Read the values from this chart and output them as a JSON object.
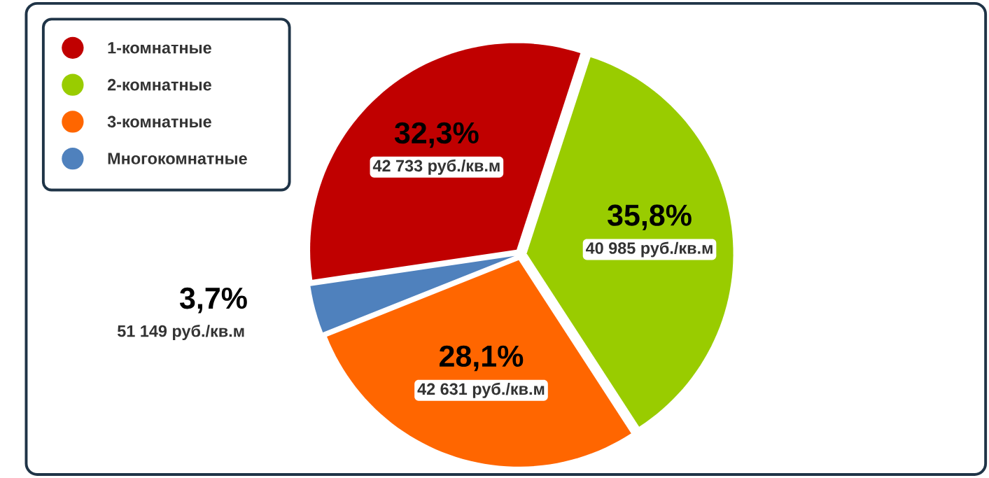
{
  "chart_data": {
    "type": "pie",
    "categories": [
      "1-комнатные",
      "2-комнатные",
      "3-комнатные",
      "Многокомнатные"
    ],
    "values": [
      32.3,
      35.8,
      28.1,
      3.7
    ],
    "colors": [
      "#c00000",
      "#99cc00",
      "#ff6600",
      "#4f81bd"
    ],
    "value_labels": [
      "32,3%",
      "35,8%",
      "28,1%",
      "3,7%"
    ],
    "legend": "top left",
    "annotations": [
      {
        "text": "42 733 руб./кв.м",
        "x": "1-комнатные"
      },
      {
        "text": "40 985 руб./кв.м",
        "x": "2-комнатные"
      },
      {
        "text": "42 631 руб./кв.м",
        "x": "3-комнатные"
      },
      {
        "text": "51 149 руб./кв.м",
        "x": "Многокомнатные"
      }
    ]
  }
}
